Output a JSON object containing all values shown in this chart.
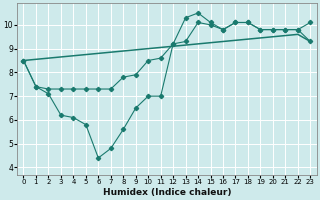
{
  "xlabel": "Humidex (Indice chaleur)",
  "bg_color": "#ceeaeb",
  "grid_color": "#ffffff",
  "line_color": "#1a7a6e",
  "xlim": [
    -0.5,
    23.5
  ],
  "ylim": [
    3.7,
    10.9
  ],
  "xticks": [
    0,
    1,
    2,
    3,
    4,
    5,
    6,
    7,
    8,
    9,
    10,
    11,
    12,
    13,
    14,
    15,
    16,
    17,
    18,
    19,
    20,
    21,
    22,
    23
  ],
  "yticks": [
    4,
    5,
    6,
    7,
    8,
    9,
    10
  ],
  "line_straight_x": [
    0,
    1,
    2,
    3,
    4,
    5,
    6,
    7,
    8,
    9,
    10,
    11,
    12,
    13,
    14,
    15,
    16,
    17,
    18,
    19,
    20,
    21,
    22,
    23
  ],
  "line_straight_y": [
    8.5,
    8.55,
    8.6,
    8.65,
    8.7,
    8.75,
    8.8,
    8.85,
    8.9,
    8.95,
    9.0,
    9.05,
    9.1,
    9.15,
    9.2,
    9.25,
    9.3,
    9.35,
    9.4,
    9.45,
    9.5,
    9.55,
    9.6,
    9.3
  ],
  "line_mid_x": [
    0,
    1,
    2,
    3,
    4,
    5,
    6,
    7,
    8,
    9,
    10,
    11,
    12,
    13,
    14,
    15,
    16,
    17,
    18,
    19,
    20,
    21,
    22,
    23
  ],
  "line_mid_y": [
    8.5,
    7.4,
    7.3,
    7.3,
    7.3,
    7.3,
    7.3,
    7.3,
    7.8,
    7.9,
    8.5,
    8.6,
    9.2,
    9.3,
    10.1,
    10.0,
    9.8,
    10.1,
    10.1,
    9.8,
    9.8,
    9.8,
    9.8,
    9.3
  ],
  "line_low_x": [
    0,
    1,
    2,
    3,
    4,
    5,
    6,
    7,
    8,
    9,
    10,
    11,
    12,
    13,
    14,
    15,
    16,
    17,
    18,
    19,
    20,
    21,
    22,
    23
  ],
  "line_low_y": [
    8.5,
    7.4,
    7.1,
    6.2,
    6.1,
    5.8,
    4.4,
    4.8,
    5.6,
    6.5,
    7.0,
    7.0,
    9.2,
    10.3,
    10.5,
    10.1,
    9.8,
    10.1,
    10.1,
    9.8,
    9.8,
    9.8,
    9.8,
    10.1
  ]
}
